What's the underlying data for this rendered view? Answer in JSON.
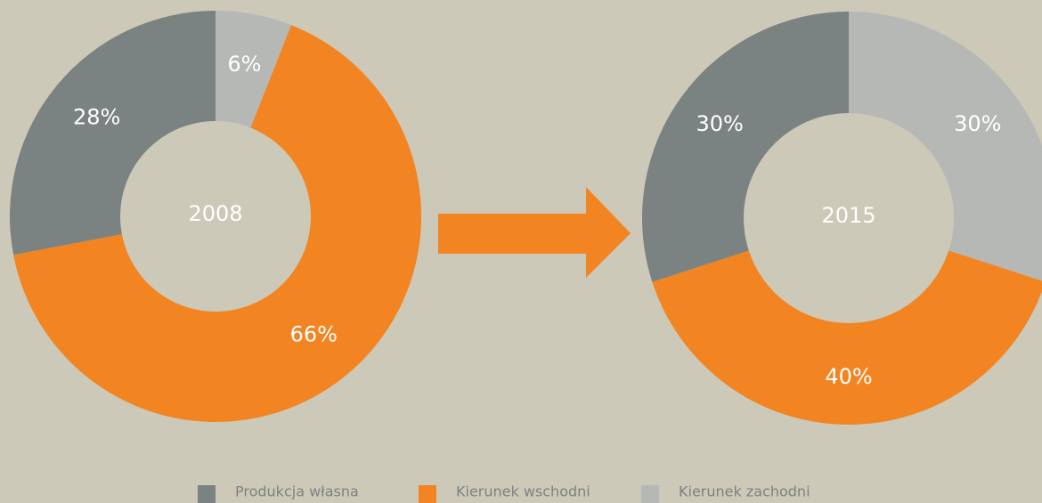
{
  "chart_data": [
    {
      "type": "donut",
      "title": "2008",
      "categories": [
        "Produkcja własna",
        "Kierunek wschodni",
        "Kierunek zachodni"
      ],
      "values": [
        28,
        66,
        6
      ],
      "value_labels": [
        "28%",
        "66%",
        "6%"
      ],
      "colors": [
        "#7b8282",
        "#f28422",
        "#b6b8b6"
      ]
    },
    {
      "type": "donut",
      "title": "2015",
      "categories": [
        "Produkcja własna",
        "Kierunek wschodni",
        "Kierunek zachodni"
      ],
      "values": [
        30,
        40,
        30
      ],
      "value_labels": [
        "30%",
        "40%",
        "30%"
      ],
      "colors": [
        "#7b8282",
        "#f28422",
        "#b6b8b6"
      ]
    }
  ]
}
